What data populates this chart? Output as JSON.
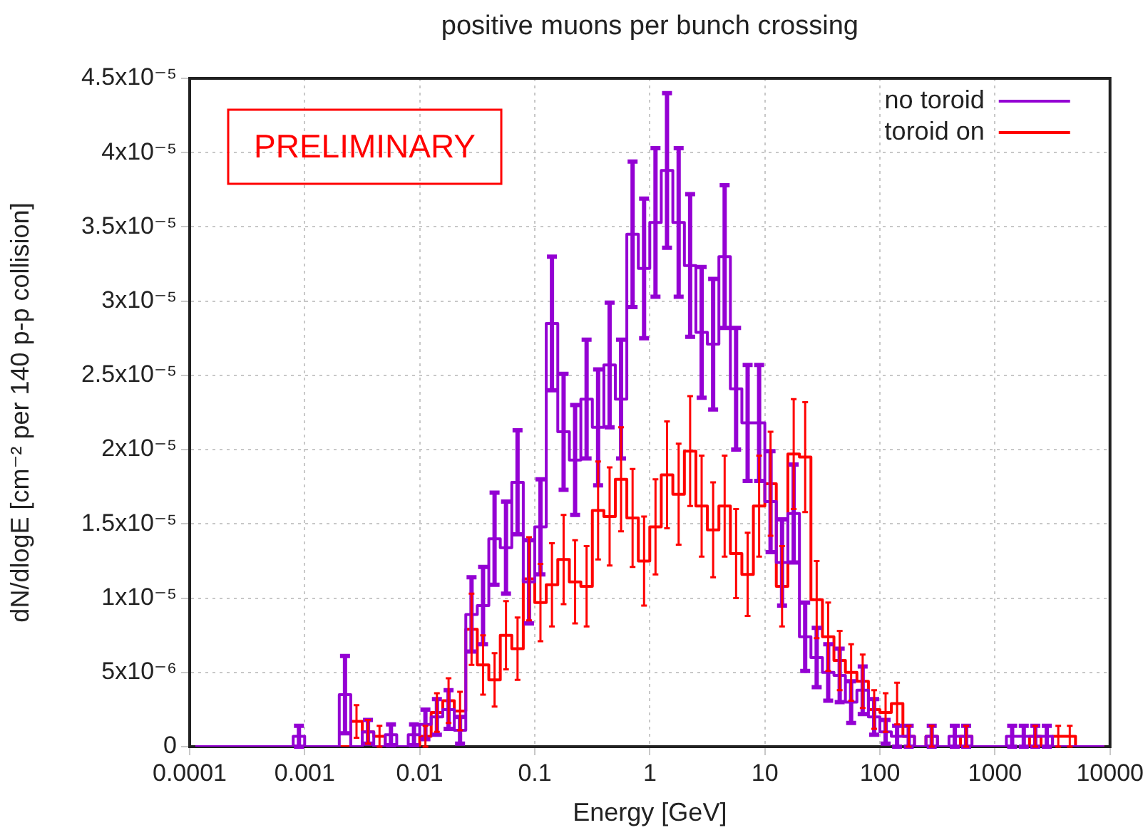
{
  "chart_data": {
    "type": "step",
    "title": "positive muons per bunch crossing",
    "xlabel": "Energy [GeV]",
    "ylabel": "dN/dlogE [cm⁻² per 140 p-p collision]",
    "log": "x",
    "grid": true,
    "legend": "top right",
    "annotations": [
      "PRELIMINARY"
    ],
    "xlim": [
      0.0001,
      10000
    ],
    "xticks": [
      0.0001,
      0.001,
      0.01,
      0.1,
      1,
      10,
      100,
      1000,
      10000
    ],
    "ylim": [
      0,
      4.5e-05
    ],
    "yticks": [
      {
        "value": 0,
        "label": "0"
      },
      {
        "value": 5e-06,
        "label": "5x10⁻⁶"
      },
      {
        "value": 1e-05,
        "label": "1x10⁻⁵"
      },
      {
        "value": 1.5e-05,
        "label": "1.5x10⁻⁵"
      },
      {
        "value": 2e-05,
        "label": "2x10⁻⁵"
      },
      {
        "value": 2.5e-05,
        "label": "2.5x10⁻⁵"
      },
      {
        "value": 3e-05,
        "label": "3x10⁻⁵"
      },
      {
        "value": 3.5e-05,
        "label": "3.5x10⁻⁵"
      },
      {
        "value": 4e-05,
        "label": "4x10⁻⁵"
      },
      {
        "value": 4.5e-05,
        "label": "4.5x10⁻⁵"
      }
    ],
    "x": [
      0.000112,
      0.000141,
      0.000178,
      0.000224,
      0.000282,
      0.000355,
      0.000447,
      0.000562,
      0.000708,
      0.000891,
      0.00112,
      0.00141,
      0.00178,
      0.00224,
      0.00282,
      0.00355,
      0.00447,
      0.00562,
      0.00708,
      0.00891,
      0.0112,
      0.0141,
      0.0178,
      0.0224,
      0.0282,
      0.0355,
      0.0447,
      0.0562,
      0.0708,
      0.0891,
      0.112,
      0.141,
      0.178,
      0.224,
      0.282,
      0.355,
      0.447,
      0.562,
      0.708,
      0.891,
      1.12,
      1.41,
      1.78,
      2.24,
      2.82,
      3.55,
      4.47,
      5.62,
      7.08,
      8.91,
      11.2,
      14.1,
      17.8,
      22.4,
      28.2,
      35.5,
      44.7,
      56.2,
      70.8,
      89.1,
      112,
      141,
      178,
      224,
      282,
      355,
      447,
      562,
      708,
      891,
      1120,
      1410,
      1780,
      2240,
      2820,
      3550,
      4470,
      5620,
      7080,
      8910
    ],
    "series": [
      {
        "name": "no toroid",
        "color": "#9400d3",
        "values": [
          0,
          0,
          0,
          0,
          0,
          0,
          0,
          0,
          0,
          7e-07,
          0,
          0,
          0,
          3.5e-06,
          0,
          1e-06,
          0,
          8e-07,
          0,
          8e-07,
          1.5e-06,
          2e-06,
          2.5e-06,
          1.1e-06,
          8.9e-06,
          9.5e-06,
          1.4e-05,
          1.34e-05,
          1.78e-05,
          1.11e-05,
          1.48e-05,
          2.85e-05,
          2.12e-05,
          1.93e-05,
          2.34e-05,
          2.15e-05,
          2.57e-05,
          2.34e-05,
          3.45e-05,
          3.22e-05,
          3.53e-05,
          3.88e-05,
          3.53e-05,
          3.24e-05,
          2.79e-05,
          2.71e-05,
          3.3e-05,
          2.41e-05,
          2.18e-05,
          2.18e-05,
          1.65e-05,
          1.24e-05,
          1.57e-05,
          7.4e-06,
          6e-06,
          5e-06,
          4.8e-06,
          3e-06,
          3.8e-06,
          2e-06,
          1e-06,
          7e-07,
          7e-07,
          0,
          7e-07,
          0,
          7e-07,
          7e-07,
          0,
          0,
          0,
          7e-07,
          7e-07,
          7e-07,
          7e-07,
          0,
          0,
          0,
          0,
          0
        ],
        "errors": [
          null,
          null,
          null,
          null,
          null,
          null,
          null,
          null,
          null,
          7e-07,
          null,
          null,
          null,
          2.6e-06,
          null,
          8e-07,
          null,
          7e-07,
          null,
          7e-07,
          1e-06,
          1.2e-06,
          1.3e-06,
          9e-07,
          2.5e-06,
          2.6e-06,
          3.1e-06,
          3.1e-06,
          3.5e-06,
          2.8e-06,
          3.2e-06,
          4.5e-06,
          3.9e-06,
          3.7e-06,
          4e-06,
          3.9e-06,
          4.2e-06,
          4e-06,
          4.9e-06,
          4.7e-06,
          5e-06,
          5.2e-06,
          5e-06,
          4.8e-06,
          4.4e-06,
          4.4e-06,
          4.8e-06,
          4.1e-06,
          3.9e-06,
          3.9e-06,
          3.4e-06,
          2.9e-06,
          3.3e-06,
          2.3e-06,
          2e-06,
          1.9e-06,
          1.8e-06,
          1.4e-06,
          1.6e-06,
          1.2e-06,
          8e-07,
          7e-07,
          7e-07,
          null,
          7e-07,
          null,
          7e-07,
          7e-07,
          null,
          null,
          null,
          7e-07,
          7e-07,
          7e-07,
          7e-07,
          null,
          null,
          null,
          null,
          null
        ]
      },
      {
        "name": "toroid on",
        "color": "#ff0000",
        "values": [
          null,
          null,
          null,
          null,
          null,
          null,
          null,
          null,
          null,
          null,
          null,
          0,
          0,
          0,
          1.7e-06,
          1e-06,
          7e-07,
          0,
          0,
          0,
          7e-07,
          2.3e-06,
          3.1e-06,
          2.4e-06,
          7.9e-06,
          5.5e-06,
          4.5e-06,
          7.5e-06,
          6.6e-06,
          1.13e-05,
          9.7e-06,
          1.09e-05,
          1.26e-05,
          1.11e-05,
          1.08e-05,
          1.59e-05,
          1.55e-05,
          1.8e-05,
          1.54e-05,
          1.25e-05,
          1.48e-05,
          1.83e-05,
          1.7e-05,
          1.99e-05,
          1.62e-05,
          1.46e-05,
          1.62e-05,
          1.3e-05,
          1.16e-05,
          1.62e-05,
          1.77e-05,
          1.08e-05,
          1.97e-05,
          1.95e-05,
          9.9e-06,
          7.4e-06,
          5.8e-06,
          5e-06,
          4.4e-06,
          2.5e-06,
          2.3e-06,
          2.9e-06,
          7e-07,
          0,
          7e-07,
          0,
          0,
          7e-07,
          0,
          0,
          0,
          null,
          0,
          7e-07,
          0,
          7e-07,
          7e-07,
          0,
          0,
          0
        ],
        "errors": [
          null,
          null,
          null,
          null,
          null,
          null,
          null,
          null,
          null,
          null,
          null,
          null,
          null,
          null,
          1.1e-06,
          8e-07,
          7e-07,
          null,
          null,
          null,
          7e-07,
          1.3e-06,
          1.5e-06,
          1.3e-06,
          2.4e-06,
          2e-06,
          1.8e-06,
          2.3e-06,
          2.1e-06,
          2.8e-06,
          2.6e-06,
          2.8e-06,
          3e-06,
          2.8e-06,
          2.7e-06,
          3.3e-06,
          3.3e-06,
          3.5e-06,
          3.3e-06,
          3e-06,
          3.2e-06,
          3.6e-06,
          3.4e-06,
          3.7e-06,
          3.4e-06,
          3.2e-06,
          3.4e-06,
          3e-06,
          2.8e-06,
          3.4e-06,
          3.5e-06,
          2.7e-06,
          3.7e-06,
          3.7e-06,
          2.6e-06,
          2.3e-06,
          2e-06,
          1.9e-06,
          1.8e-06,
          1.3e-06,
          1.3e-06,
          1.4e-06,
          7e-07,
          null,
          7e-07,
          null,
          null,
          7e-07,
          null,
          null,
          null,
          null,
          null,
          7e-07,
          null,
          7e-07,
          7e-07,
          null,
          null,
          null
        ]
      }
    ]
  }
}
